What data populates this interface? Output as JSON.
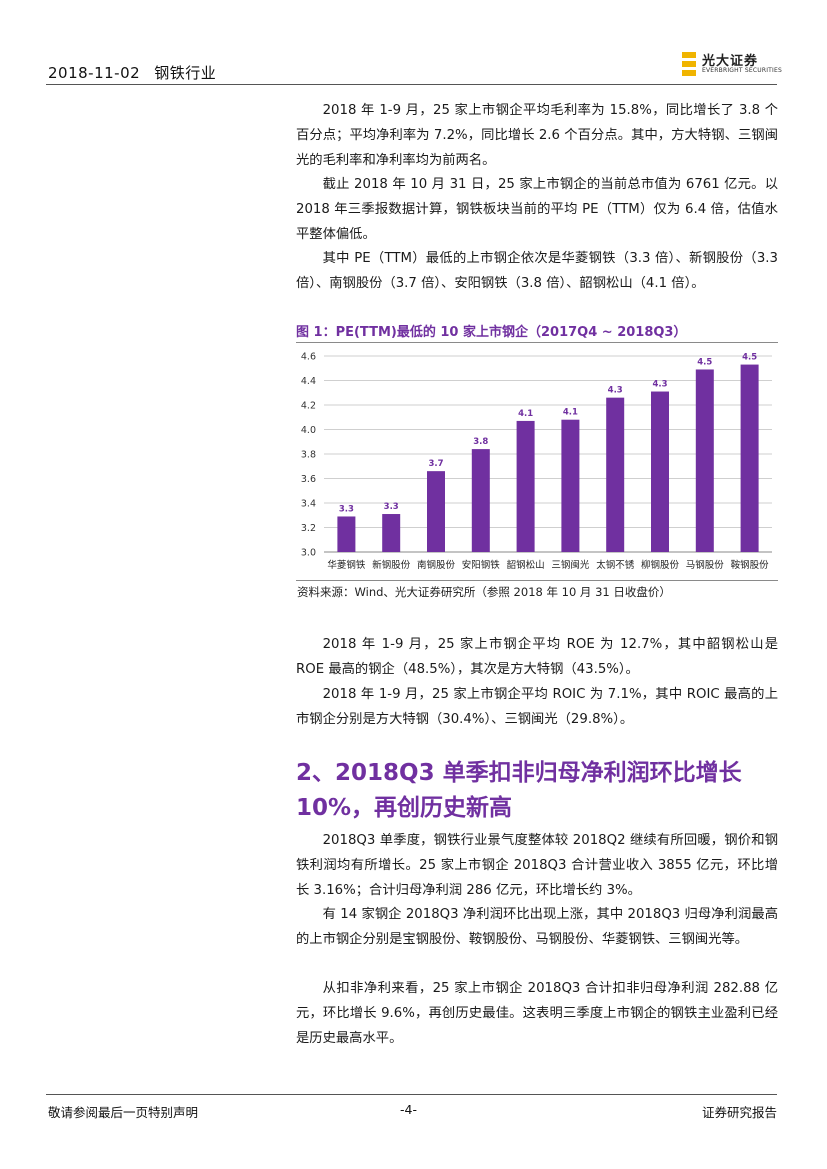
{
  "header": {
    "date": "2018-11-02",
    "industry": "钢铁行业"
  },
  "logo": {
    "cn": "光大证券",
    "en": "EVERBRIGHT SECURITIES",
    "accent": "#f0b400"
  },
  "paragraphs_top": [
    "2018 年 1-9 月，25 家上市钢企平均毛利率为 15.8%，同比增长了 3.8 个百分点；平均净利率为 7.2%，同比增长 2.6 个百分点。其中，方大特钢、三钢闽光的毛利率和净利率均为前两名。",
    "截止 2018 年 10 月 31 日，25 家上市钢企的当前总市值为 6761 亿元。以 2018 年三季报数据计算，钢铁板块当前的平均 PE（TTM）仅为 6.4 倍，估值水平整体偏低。",
    "其中 PE（TTM）最低的上市钢企依次是华菱钢铁（3.3 倍）、新钢股份（3.3 倍）、南钢股份（3.7 倍）、安阳钢铁（3.8 倍）、韶钢松山（4.1 倍）。"
  ],
  "figure": {
    "title": "图 1：PE(TTM)最低的 10 家上市钢企（2017Q4 ~ 2018Q3）",
    "source": "资料来源：Wind、光大证券研究所（参照 2018 年 10 月 31 日收盘价）"
  },
  "chart_data": {
    "type": "bar",
    "categories": [
      "华菱钢铁",
      "新钢股份",
      "南钢股份",
      "安阳钢铁",
      "韶钢松山",
      "三钢闽光",
      "太钢不锈",
      "柳钢股份",
      "马钢股份",
      "鞍钢股份"
    ],
    "values": [
      3.29,
      3.31,
      3.66,
      3.84,
      4.07,
      4.08,
      4.26,
      4.31,
      4.49,
      4.53
    ],
    "data_labels": [
      "3.3",
      "3.3",
      "3.7",
      "3.8",
      "4.1",
      "4.1",
      "4.3",
      "4.3",
      "4.5",
      "4.5"
    ],
    "y_ticks": [
      "3.0",
      "3.2",
      "3.4",
      "3.6",
      "3.8",
      "4.0",
      "4.2",
      "4.4",
      "4.6"
    ],
    "ylim": [
      3.0,
      4.6
    ],
    "grid": true,
    "bar_color": "#7030a0",
    "title": "",
    "xlabel": "",
    "ylabel": ""
  },
  "paragraphs_mid": [
    "2018 年 1-9 月，25 家上市钢企平均 ROE 为 12.7%，其中韶钢松山是 ROE 最高的钢企（48.5%），其次是方大特钢（43.5%）。",
    "2018 年 1-9 月，25 家上市钢企平均 ROIC 为 7.1%，其中 ROIC 最高的上市钢企分别是方大特钢（30.4%）、三钢闽光（29.8%）。"
  ],
  "section": {
    "title": "2、2018Q3 单季扣非归母净利润环比增长 10%，再创历史新高"
  },
  "paragraphs_bottom": [
    "2018Q3 单季度，钢铁行业景气度整体较 2018Q2 继续有所回暖，钢价和钢铁利润均有所增长。25 家上市钢企 2018Q3 合计营业收入 3855 亿元，环比增长 3.16%；合计归母净利润 286 亿元，环比增长约 3%。",
    "有 14 家钢企 2018Q3 净利润环比出现上涨，其中 2018Q3 归母净利润最高的上市钢企分别是宝钢股份、鞍钢股份、马钢股份、华菱钢铁、三钢闽光等。",
    "从扣非净利来看，25 家上市钢企 2018Q3 合计扣非归母净利润 282.88 亿元，环比增长 9.6%，再创历史最佳。这表明三季度上市钢企的钢铁主业盈利已经是历史最高水平。"
  ],
  "footer": {
    "left": "敬请参阅最后一页特别声明",
    "page": "-4-",
    "right": "证券研究报告"
  }
}
